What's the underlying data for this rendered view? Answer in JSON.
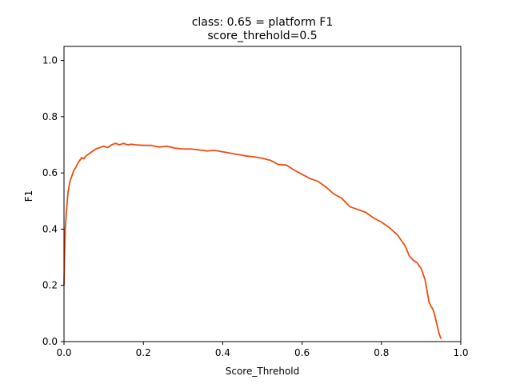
{
  "chart_data": {
    "type": "line",
    "title": "class: 0.65 = platform F1",
    "subtitle": "score_threhold=0.5",
    "xlabel": "Score_Threhold",
    "ylabel": "F1",
    "xlim": [
      0.0,
      1.0
    ],
    "ylim": [
      0.0,
      1.05
    ],
    "xticks": [
      "0.0",
      "0.2",
      "0.4",
      "0.6",
      "0.8",
      "1.0"
    ],
    "yticks": [
      "0.0",
      "0.2",
      "0.4",
      "0.6",
      "0.8",
      "1.0"
    ],
    "grid": false,
    "series": [
      {
        "color": "#ee4c0f",
        "x": [
          0.0,
          0.003,
          0.006,
          0.01,
          0.015,
          0.02,
          0.025,
          0.03,
          0.035,
          0.04,
          0.045,
          0.05,
          0.055,
          0.06,
          0.07,
          0.08,
          0.09,
          0.1,
          0.11,
          0.12,
          0.13,
          0.14,
          0.15,
          0.16,
          0.17,
          0.18,
          0.2,
          0.22,
          0.24,
          0.26,
          0.28,
          0.3,
          0.32,
          0.34,
          0.36,
          0.38,
          0.4,
          0.42,
          0.44,
          0.46,
          0.48,
          0.5,
          0.52,
          0.54,
          0.56,
          0.58,
          0.6,
          0.62,
          0.64,
          0.66,
          0.68,
          0.7,
          0.72,
          0.74,
          0.76,
          0.78,
          0.8,
          0.82,
          0.84,
          0.86,
          0.87,
          0.88,
          0.89,
          0.9,
          0.91,
          0.92,
          0.925,
          0.93,
          0.935,
          0.94,
          0.945,
          0.95
        ],
        "y": [
          0.2,
          0.4,
          0.46,
          0.53,
          0.57,
          0.59,
          0.61,
          0.62,
          0.635,
          0.645,
          0.655,
          0.65,
          0.66,
          0.665,
          0.675,
          0.685,
          0.69,
          0.695,
          0.69,
          0.7,
          0.705,
          0.7,
          0.705,
          0.7,
          0.702,
          0.7,
          0.698,
          0.698,
          0.692,
          0.695,
          0.688,
          0.685,
          0.685,
          0.682,
          0.678,
          0.68,
          0.675,
          0.67,
          0.665,
          0.66,
          0.657,
          0.652,
          0.645,
          0.63,
          0.628,
          0.61,
          0.595,
          0.58,
          0.57,
          0.55,
          0.525,
          0.51,
          0.48,
          0.47,
          0.46,
          0.44,
          0.425,
          0.405,
          0.38,
          0.34,
          0.305,
          0.29,
          0.28,
          0.26,
          0.22,
          0.14,
          0.125,
          0.115,
          0.09,
          0.06,
          0.03,
          0.01
        ]
      }
    ]
  }
}
